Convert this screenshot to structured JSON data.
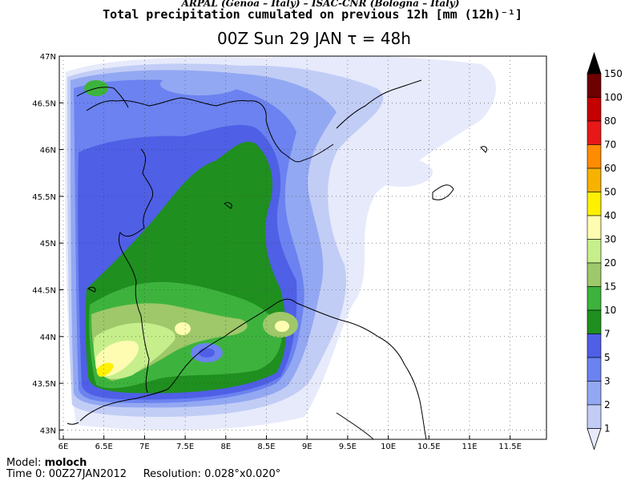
{
  "header": {
    "agency": "ARPAL (Genoa – Italy)   –   ISAC-CNR (Bologna – Italy)",
    "title": "Total precipitation cumulated on previous 12h [mm (12h)⁻¹]",
    "subtitle": "00Z Sun 29 JAN   τ = 48h"
  },
  "axes": {
    "lon_labels": [
      "6E",
      "6.5E",
      "7E",
      "7.5E",
      "8E",
      "8.5E",
      "9E",
      "9.5E",
      "10E",
      "10.5E",
      "11E",
      "11.5E"
    ],
    "lat_labels": [
      "47N",
      "46.5N",
      "46N",
      "45.5N",
      "45N",
      "44.5N",
      "44N",
      "43.5N",
      "43N"
    ]
  },
  "legend": {
    "levels": [
      "150",
      "100",
      "80",
      "70",
      "60",
      "50",
      "40",
      "30",
      "20",
      "15",
      "10",
      "7",
      "5",
      "3",
      "2",
      "1"
    ],
    "colors": [
      "#000000",
      "#6e0000",
      "#c40000",
      "#e81818",
      "#ff8c00",
      "#f7b200",
      "#fff000",
      "#fdfcb0",
      "#c6ef8c",
      "#9ec869",
      "#3db33d",
      "#1f8f1f",
      "#4f5fe6",
      "#6b82f0",
      "#93a8f2",
      "#c2cdf6",
      "#e6eafb"
    ]
  },
  "footer": {
    "model_label": "Model:",
    "model_value": "moloch",
    "time_label": "Time 0:",
    "time_value": "00Z27JAN2012",
    "res_label": "Resolution:",
    "res_value": "0.028°x0.020°"
  }
}
